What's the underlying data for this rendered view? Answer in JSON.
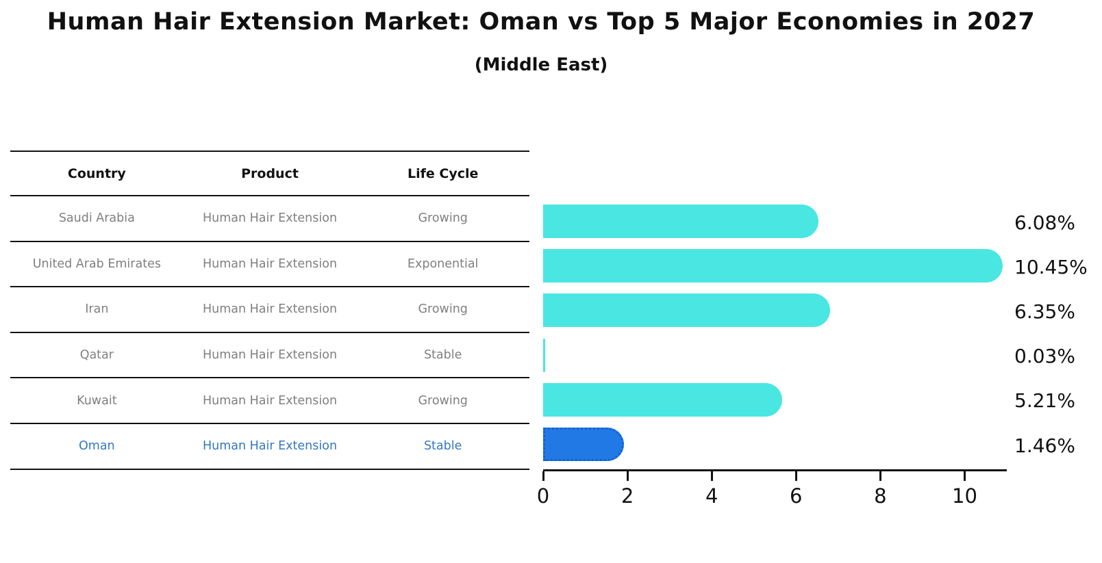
{
  "title": "Human Hair Extension Market: Oman vs Top 5 Major Economies in 2027",
  "subtitle": "(Middle East)",
  "colors": {
    "bar_default": "#4AE6E2",
    "bar_highlight": "#2079E4",
    "bar_highlight_border": "#1560cf",
    "table_text": "#7f7f7f",
    "highlight_text": "#3277c3",
    "axis": "#111111"
  },
  "table": {
    "headers": [
      "Country",
      "Product",
      "Life Cycle"
    ],
    "rows": [
      {
        "country": "Saudi Arabia",
        "product": "Human Hair Extension",
        "life_cycle": "Growing",
        "highlight": false
      },
      {
        "country": "United Arab Emirates",
        "product": "Human Hair Extension",
        "life_cycle": "Exponential",
        "highlight": false
      },
      {
        "country": "Iran",
        "product": "Human Hair Extension",
        "life_cycle": "Growing",
        "highlight": false
      },
      {
        "country": "Qatar",
        "product": "Human Hair Extension",
        "life_cycle": "Stable",
        "highlight": false
      },
      {
        "country": "Kuwait",
        "product": "Human Hair Extension",
        "life_cycle": "Growing",
        "highlight": false
      },
      {
        "country": "Oman",
        "product": "Human Hair Extension",
        "life_cycle": "Stable",
        "highlight": true
      }
    ]
  },
  "chart_data": {
    "type": "bar",
    "orientation": "horizontal",
    "title": "Human Hair Extension Market: Oman vs Top 5 Major Economies in 2027 (Middle East)",
    "categories": [
      "Saudi Arabia",
      "United Arab Emirates",
      "Iran",
      "Qatar",
      "Kuwait",
      "Oman"
    ],
    "values": [
      6.08,
      10.45,
      6.35,
      0.03,
      5.21,
      1.46
    ],
    "value_labels": [
      "6.08%",
      "10.45%",
      "6.35%",
      "0.03%",
      "5.21%",
      "1.46%"
    ],
    "highlight_index": 5,
    "xlabel": "",
    "ylabel": "",
    "xlim": [
      0,
      11
    ],
    "xticks": [
      0,
      2,
      4,
      6,
      8,
      10
    ],
    "grid": false,
    "legend": false
  }
}
